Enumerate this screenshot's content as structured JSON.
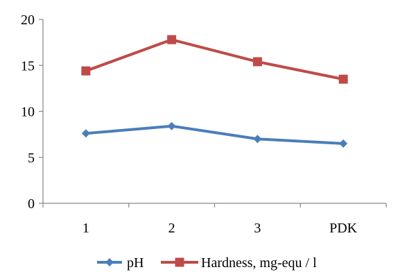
{
  "chart_data": {
    "type": "line",
    "categories": [
      "1",
      "2",
      "3",
      "PDK"
    ],
    "series": [
      {
        "name": "pH",
        "values": [
          7.6,
          8.4,
          7.0,
          6.5
        ],
        "color": "#4a7ebb",
        "marker": "diamond"
      },
      {
        "name": "Hardness, mg-equ / l",
        "values": [
          14.4,
          17.8,
          15.4,
          13.5
        ],
        "color": "#be4b48",
        "marker": "square"
      }
    ],
    "yticks": [
      "0",
      "5",
      "10",
      "15",
      "20"
    ],
    "ylim": [
      0,
      20
    ],
    "grid": false,
    "legend_position": "bottom"
  }
}
